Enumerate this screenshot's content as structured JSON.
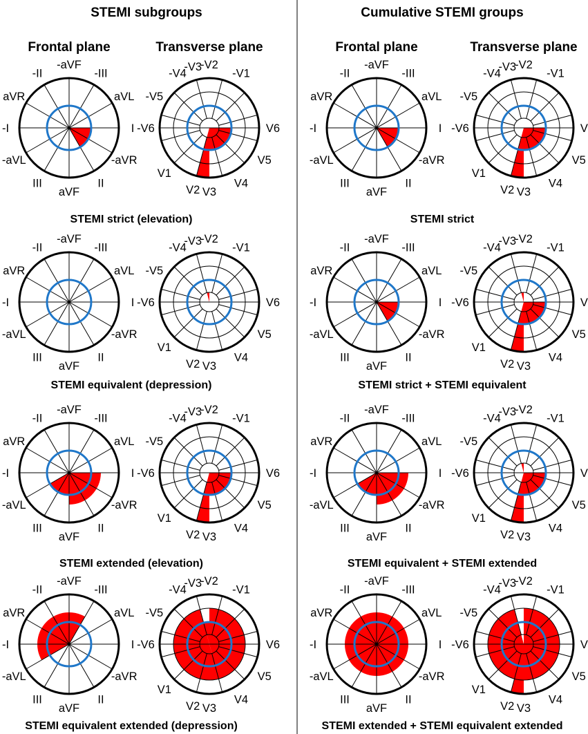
{
  "colors": {
    "ring": "#1f77c9",
    "sector": "#ff0000",
    "line": "#000000"
  },
  "columns": [
    {
      "title": "STEMI subgroups",
      "frontal_header": "Frontal plane",
      "transverse_header": "Transverse plane"
    },
    {
      "title": "Cumulative STEMI groups",
      "frontal_header": "Frontal plane",
      "transverse_header": "Transverse plane"
    }
  ],
  "frontal_labels": [
    "I",
    "-aVR",
    "II",
    "aVF",
    "III",
    "-aVL",
    "-I",
    "aVR",
    "-II",
    "-aVF",
    "-III",
    "aVL"
  ],
  "transverse_labels": [
    "V6",
    "V5",
    "V4",
    "V3",
    "V2",
    "V1",
    "-V6",
    "-V5",
    "-V4",
    "-V3",
    "-V2",
    "-V1"
  ],
  "panels": [
    {
      "caption": "STEMI strict (elevation)",
      "frontal": [
        {
          "from": 0,
          "to": 60,
          "radius": 2
        }
      ],
      "transverse": [
        {
          "from": 0,
          "to": 90,
          "radius": 2
        },
        {
          "from": 90,
          "to": 105,
          "radius": 4
        }
      ]
    },
    {
      "caption": "STEMI equivalent (depression)",
      "frontal": [],
      "transverse": [
        {
          "from": 255,
          "to": 270,
          "radius": 1
        }
      ]
    },
    {
      "caption": "STEMI extended (elevation)",
      "frontal": [
        {
          "from": 0,
          "to": 90,
          "radius": 3
        },
        {
          "from": 90,
          "to": 150,
          "radius": 2
        }
      ],
      "transverse": [
        {
          "from": 0,
          "to": 90,
          "radius": 2
        },
        {
          "from": 90,
          "to": 105,
          "radius": 4
        }
      ]
    },
    {
      "caption": "STEMI equivalent extended (depression)",
      "frontal": [
        {
          "from": 150,
          "to": 300,
          "radius": 3
        }
      ],
      "transverse": [
        {
          "from": 0,
          "to": 75,
          "radius": 3
        },
        {
          "from": 75,
          "to": 255,
          "radius": 3
        },
        {
          "from": 255,
          "to": 270,
          "radius": 2
        },
        {
          "from": 270,
          "to": 360,
          "radius": 3
        }
      ]
    },
    {
      "caption": "STEMI strict",
      "frontal": [
        {
          "from": 0,
          "to": 60,
          "radius": 2
        }
      ],
      "transverse": [
        {
          "from": 0,
          "to": 90,
          "radius": 2
        },
        {
          "from": 90,
          "to": 105,
          "radius": 4
        }
      ]
    },
    {
      "caption": "STEMI strict + STEMI equivalent",
      "frontal": [
        {
          "from": 0,
          "to": 60,
          "radius": 2
        }
      ],
      "transverse": [
        {
          "from": 0,
          "to": 90,
          "radius": 2
        },
        {
          "from": 90,
          "to": 105,
          "radius": 4
        },
        {
          "from": 255,
          "to": 270,
          "radius": 1
        }
      ]
    },
    {
      "caption": "STEMI equivalent + STEMI extended",
      "frontal": [
        {
          "from": 0,
          "to": 90,
          "radius": 3
        },
        {
          "from": 90,
          "to": 150,
          "radius": 2
        }
      ],
      "transverse": [
        {
          "from": 0,
          "to": 90,
          "radius": 2
        },
        {
          "from": 90,
          "to": 105,
          "radius": 4
        },
        {
          "from": 255,
          "to": 270,
          "radius": 1
        }
      ]
    },
    {
      "caption": "STEMI extended + STEMI equivalent extended",
      "frontal": [
        {
          "from": 0,
          "to": 360,
          "radius": 3
        }
      ],
      "transverse": [
        {
          "from": 0,
          "to": 255,
          "radius": 3
        },
        {
          "from": 90,
          "to": 105,
          "radius": 4
        },
        {
          "from": 270,
          "to": 360,
          "radius": 3
        }
      ]
    }
  ]
}
